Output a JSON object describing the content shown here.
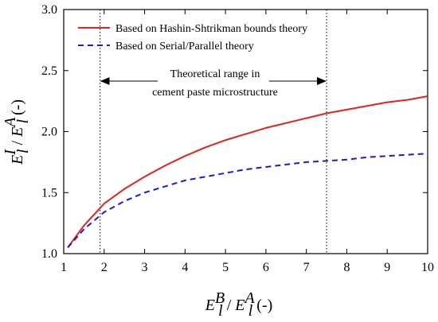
{
  "chart_data": {
    "type": "line",
    "x_axis": {
      "label": {
        "main": "E",
        "sup_top": "B",
        "sub_top": "l",
        "sep": " / ",
        "main2": "E",
        "sup_bottom": "A",
        "sub_bottom": "l",
        "unit": " (-)"
      },
      "range": [
        1,
        10
      ],
      "ticks": [
        1,
        2,
        3,
        4,
        5,
        6,
        7,
        8,
        9,
        10
      ]
    },
    "y_axis": {
      "label": {
        "main": "E",
        "sup_top": "I",
        "sub_top": "l",
        "sep": " / ",
        "main2": "E",
        "sup_bottom": "A",
        "sub_bottom": "l",
        "unit": " (-)"
      },
      "range": [
        1.0,
        3.0
      ],
      "ticks": [
        "1.0",
        "1.5",
        "2.0",
        "2.5",
        "3.0"
      ]
    },
    "legend": {
      "placement": "top-left",
      "entries": [
        "Based on Hashin-Shtrikman bounds theory",
        "Based on Serial/Parallel theory"
      ]
    },
    "series": [
      {
        "name": "Based on Hashin-Shtrikman bounds theory",
        "color": "#e8201f",
        "dash": "solid",
        "x": [
          1.1,
          1.5,
          2.0,
          2.5,
          3.0,
          3.5,
          4.0,
          4.5,
          5.0,
          5.5,
          6.0,
          6.5,
          7.0,
          7.5,
          8.0,
          8.5,
          9.0,
          9.5,
          10.0
        ],
        "y": [
          1.05,
          1.23,
          1.41,
          1.53,
          1.63,
          1.72,
          1.8,
          1.87,
          1.93,
          1.98,
          2.03,
          2.07,
          2.11,
          2.15,
          2.18,
          2.21,
          2.24,
          2.26,
          2.29
        ]
      },
      {
        "name": "Based on Serial/Parallel theory",
        "color": "#1a1adb",
        "dash": "dashed",
        "x": [
          1.1,
          1.5,
          2.0,
          2.5,
          3.0,
          3.5,
          4.0,
          4.5,
          5.0,
          5.5,
          6.0,
          6.5,
          7.0,
          7.5,
          8.0,
          8.5,
          9.0,
          9.5,
          10.0
        ],
        "y": [
          1.05,
          1.2,
          1.34,
          1.43,
          1.5,
          1.55,
          1.6,
          1.63,
          1.66,
          1.69,
          1.71,
          1.73,
          1.75,
          1.76,
          1.77,
          1.79,
          1.8,
          1.81,
          1.82
        ]
      }
    ],
    "annotation": {
      "lines": [
        "Theoretical range in",
        "cement paste microstructure"
      ],
      "range": [
        1.9,
        7.5
      ],
      "vline_style": "dotted"
    }
  }
}
